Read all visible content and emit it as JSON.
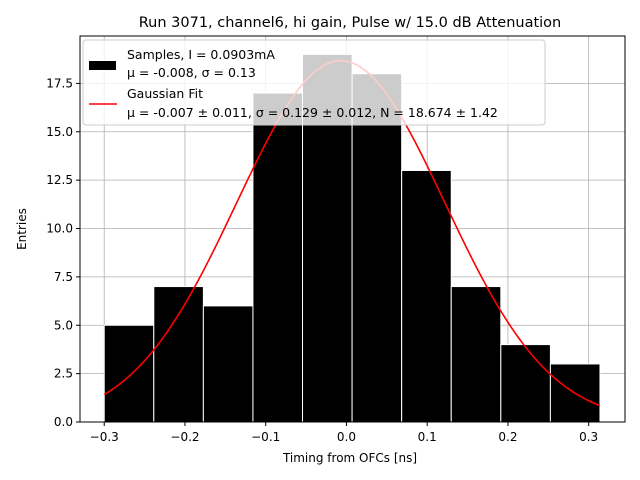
{
  "chart_data": {
    "type": "bar",
    "title": "Run 3071, channel6, hi gain, Pulse w/ 15.0 dB Attenuation",
    "xlabel": "Timing from OFCs [ns]",
    "ylabel": "Entries",
    "xlim": [
      -0.33,
      0.345
    ],
    "ylim": [
      0,
      19.95
    ],
    "grid": true,
    "legend_position": "top-left",
    "x_ticks": [
      -0.3,
      -0.2,
      -0.1,
      0.0,
      0.1,
      0.2,
      0.3
    ],
    "x_tick_labels": [
      "−0.3",
      "−0.2",
      "−0.1",
      "0.0",
      "0.1",
      "0.2",
      "0.3"
    ],
    "y_ticks": [
      0,
      2.5,
      5,
      7.5,
      10,
      12.5,
      15,
      17.5
    ],
    "y_tick_labels": [
      "0.0",
      "2.5",
      "5.0",
      "7.5",
      "10.0",
      "12.5",
      "15.0",
      "17.5"
    ],
    "histogram": {
      "name": "Samples",
      "color": "#000000",
      "edge_color": "#ffffff",
      "bin_edges": [
        -0.3,
        -0.2386,
        -0.1772,
        -0.1158,
        -0.0544,
        0.007,
        0.0684,
        0.1298,
        0.1912,
        0.2526,
        0.314
      ],
      "counts": [
        5,
        7,
        6,
        17,
        19,
        18,
        13,
        7,
        4,
        3
      ]
    },
    "fit": {
      "name": "Gaussian Fit",
      "color": "#ff0000",
      "mu": -0.007,
      "sigma": 0.129,
      "N": 18.674,
      "x_range": [
        -0.3,
        0.314
      ]
    },
    "legend": [
      {
        "kind": "patch",
        "color": "#000000",
        "line1": "Samples, I = 0.0903mA",
        "line2": "μ = -0.008, σ = 0.13"
      },
      {
        "kind": "line",
        "color": "#ff0000",
        "line1": "Gaussian Fit",
        "line2": "μ = -0.007 ± 0.011, σ = 0.129 ± 0.012, N = 18.674 ± 1.42"
      }
    ]
  }
}
